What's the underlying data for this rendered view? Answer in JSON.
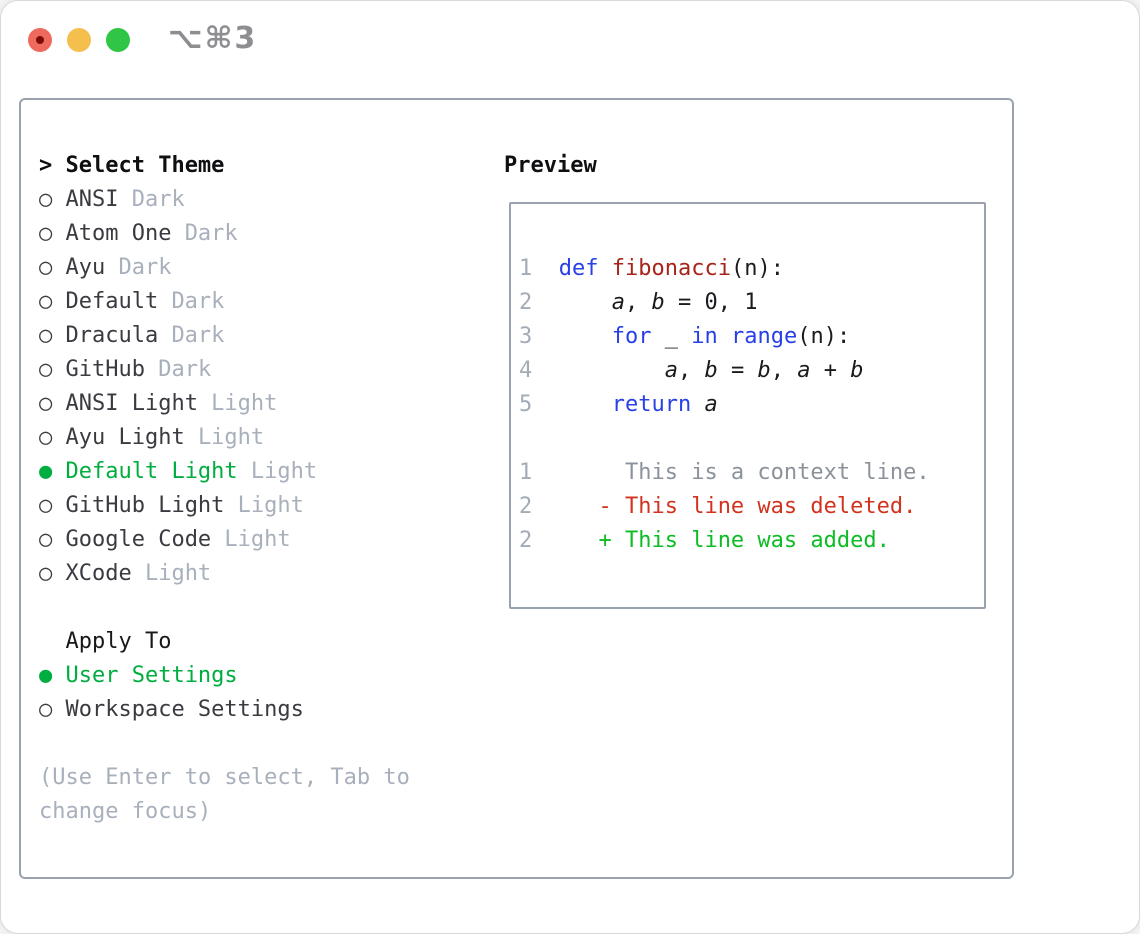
{
  "window": {
    "title": "⌥⌘3"
  },
  "colors": {
    "traffic_red": "#ee6a5f",
    "traffic_red_dot": "#7c0b06",
    "traffic_yellow": "#f5bf4e",
    "traffic_green": "#31c546",
    "panel_border": "#9aa2ad",
    "selection_green": "#00ad3f",
    "keyword_blue": "#2840e6",
    "function_red": "#a8241a",
    "deleted_red": "#d2331f",
    "added_green": "#0ebc25",
    "muted_gray": "#a8b0bc"
  },
  "theme_list": {
    "header_prefix": ">",
    "header": "Select Theme",
    "items": [
      {
        "bullet": "○",
        "name": "ANSI",
        "variant": "Dark",
        "selected": false
      },
      {
        "bullet": "○",
        "name": "Atom One",
        "variant": "Dark",
        "selected": false
      },
      {
        "bullet": "○",
        "name": "Ayu",
        "variant": "Dark",
        "selected": false
      },
      {
        "bullet": "○",
        "name": "Default",
        "variant": "Dark",
        "selected": false
      },
      {
        "bullet": "○",
        "name": "Dracula",
        "variant": "Dark",
        "selected": false
      },
      {
        "bullet": "○",
        "name": "GitHub",
        "variant": "Dark",
        "selected": false
      },
      {
        "bullet": "○",
        "name": "ANSI Light",
        "variant": "Light",
        "selected": false
      },
      {
        "bullet": "○",
        "name": "Ayu Light",
        "variant": "Light",
        "selected": false
      },
      {
        "bullet": "●",
        "name": "Default Light",
        "variant": "Light",
        "selected": true
      },
      {
        "bullet": "○",
        "name": "GitHub Light",
        "variant": "Light",
        "selected": false
      },
      {
        "bullet": "○",
        "name": "Google Code",
        "variant": "Light",
        "selected": false
      },
      {
        "bullet": "○",
        "name": "XCode",
        "variant": "Light",
        "selected": false
      }
    ]
  },
  "apply_to": {
    "header": "Apply To",
    "items": [
      {
        "bullet": "●",
        "label": "User Settings",
        "selected": true
      },
      {
        "bullet": "○",
        "label": "Workspace Settings",
        "selected": false
      }
    ]
  },
  "help_text": [
    "(Use Enter to select, Tab to",
    "change focus)"
  ],
  "preview": {
    "header": "Preview",
    "lines": [
      [
        {
          "t": "1",
          "c": "ln"
        },
        {
          "t": "  ",
          "c": "pl"
        },
        {
          "t": "def",
          "c": "kw"
        },
        {
          "t": " ",
          "c": "pl"
        },
        {
          "t": "fibonacci",
          "c": "fn"
        },
        {
          "t": "(n):",
          "c": "pl"
        }
      ],
      [
        {
          "t": "2",
          "c": "ln"
        },
        {
          "t": "      ",
          "c": "pl"
        },
        {
          "t": "a",
          "c": "vr"
        },
        {
          "t": ", ",
          "c": "pl"
        },
        {
          "t": "b",
          "c": "vr"
        },
        {
          "t": " = 0, 1",
          "c": "pl"
        }
      ],
      [
        {
          "t": "3",
          "c": "ln"
        },
        {
          "t": "      ",
          "c": "pl"
        },
        {
          "t": "for",
          "c": "kw"
        },
        {
          "t": " _ ",
          "c": "pl"
        },
        {
          "t": "in",
          "c": "kw"
        },
        {
          "t": " ",
          "c": "pl"
        },
        {
          "t": "range",
          "c": "kw"
        },
        {
          "t": "(n):",
          "c": "pl"
        }
      ],
      [
        {
          "t": "4",
          "c": "ln"
        },
        {
          "t": "          ",
          "c": "pl"
        },
        {
          "t": "a",
          "c": "vr"
        },
        {
          "t": ", ",
          "c": "pl"
        },
        {
          "t": "b",
          "c": "vr"
        },
        {
          "t": " = ",
          "c": "pl"
        },
        {
          "t": "b",
          "c": "vr"
        },
        {
          "t": ", ",
          "c": "pl"
        },
        {
          "t": "a",
          "c": "vr"
        },
        {
          "t": " + ",
          "c": "pl"
        },
        {
          "t": "b",
          "c": "vr"
        }
      ],
      [
        {
          "t": "5",
          "c": "ln"
        },
        {
          "t": "      ",
          "c": "pl"
        },
        {
          "t": "return",
          "c": "kw"
        },
        {
          "t": " ",
          "c": "pl"
        },
        {
          "t": "a",
          "c": "vr"
        }
      ],
      [],
      [
        {
          "t": "1",
          "c": "ln"
        },
        {
          "t": "       ",
          "c": "pl"
        },
        {
          "t": "This is a context line.",
          "c": "ctx"
        }
      ],
      [
        {
          "t": "2",
          "c": "ln"
        },
        {
          "t": "     ",
          "c": "pl"
        },
        {
          "t": "- This line was deleted.",
          "c": "del"
        }
      ],
      [
        {
          "t": "2",
          "c": "ln"
        },
        {
          "t": "     ",
          "c": "pl"
        },
        {
          "t": "+ This line was added.",
          "c": "add"
        }
      ]
    ]
  }
}
